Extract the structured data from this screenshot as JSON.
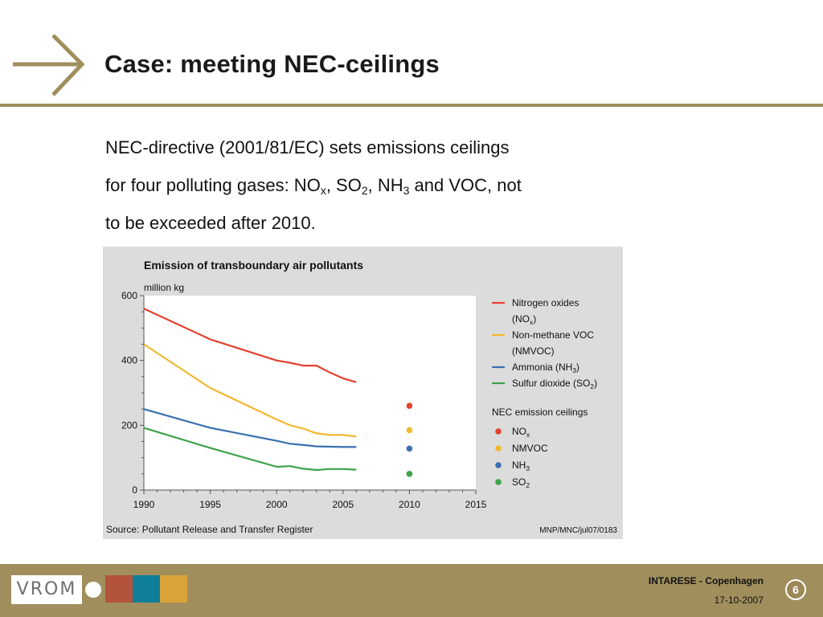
{
  "slide": {
    "title": "Case: meeting NEC-ceilings",
    "body_parts": [
      "NEC-directive (2001/81/EC) sets emissions ceilings",
      "for four polluting gases: NO",
      "x",
      ", SO",
      "2",
      ", NH",
      "3",
      " and VOC, not",
      "to be exceeded after 2010."
    ],
    "page_number": "6"
  },
  "footer": {
    "logo_text": "VROM",
    "event": "INTARESE - Copenhagen",
    "date": "17-10-2007"
  },
  "colors": {
    "accent": "#a08e5c",
    "nox": "#e3422f",
    "nmvoc": "#f4b731",
    "nh3": "#3a6fb0",
    "so2": "#3da24a",
    "logo_squares": [
      "#b2543c",
      "#0e7f97",
      "#d9a33a"
    ]
  },
  "chart_data": {
    "type": "line",
    "title": "Emission of transboundary air pollutants",
    "ylabel": "million kg",
    "ylim": [
      0,
      600
    ],
    "xlim": [
      1990,
      2015
    ],
    "yticks": [
      "0",
      "200",
      "400",
      "600"
    ],
    "xticks": [
      "1990",
      "1995",
      "2000",
      "2005",
      "2010",
      "2015"
    ],
    "grid": false,
    "legend_position": "right",
    "series": [
      {
        "name": "Nitrogen oxides (NO",
        "name_sub": "x",
        "name_tail": ")",
        "color_key": "nox",
        "x": [
          1990,
          1995,
          2000,
          2001,
          2002,
          2003,
          2004,
          2005,
          2006
        ],
        "y": [
          560,
          465,
          400,
          393,
          384,
          384,
          363,
          345,
          333
        ]
      },
      {
        "name": "Non-methane VOC (NMVOC)",
        "color_key": "nmvoc",
        "x": [
          1990,
          1995,
          2000,
          2001,
          2002,
          2003,
          2004,
          2005,
          2006
        ],
        "y": [
          450,
          315,
          218,
          200,
          190,
          175,
          170,
          170,
          165
        ]
      },
      {
        "name": "Ammonia (NH",
        "name_sub": "3",
        "name_tail": ")",
        "color_key": "nh3",
        "x": [
          1990,
          1995,
          2000,
          2001,
          2002,
          2003,
          2004,
          2005,
          2006
        ],
        "y": [
          250,
          192,
          152,
          143,
          139,
          135,
          134,
          133,
          133
        ]
      },
      {
        "name": "Sulfur dioxide (SO",
        "name_sub": "2",
        "name_tail": ")",
        "color_key": "so2",
        "x": [
          1990,
          1995,
          2000,
          2001,
          2002,
          2003,
          2004,
          2005,
          2006
        ],
        "y": [
          192,
          130,
          72,
          74,
          66,
          62,
          65,
          65,
          63
        ]
      }
    ],
    "ceilings_title": "NEC emission ceilings",
    "ceilings": [
      {
        "name": "NO",
        "sub": "x",
        "color_key": "nox",
        "x": 2010,
        "y": 260
      },
      {
        "name": "NMVOC",
        "sub": "",
        "color_key": "nmvoc",
        "x": 2010,
        "y": 185
      },
      {
        "name": "NH",
        "sub": "3",
        "color_key": "nh3",
        "x": 2010,
        "y": 128
      },
      {
        "name": "SO",
        "sub": "2",
        "color_key": "so2",
        "x": 2010,
        "y": 50
      }
    ],
    "source": "Source: Pollutant Release and Transfer Register",
    "code": "MNP/MNC/jul07/0183"
  }
}
